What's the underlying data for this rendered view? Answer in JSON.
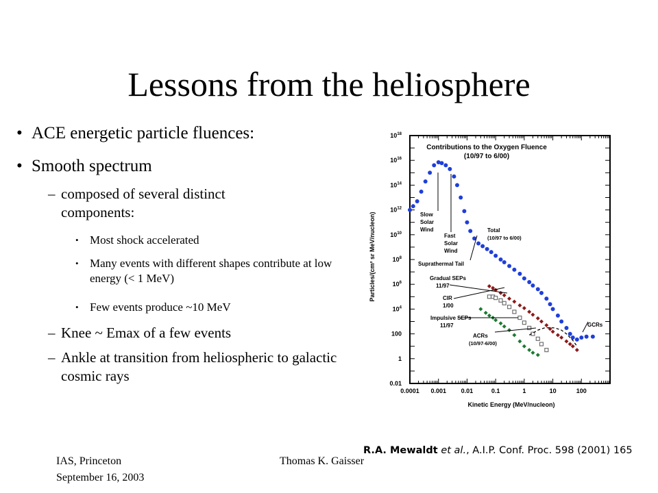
{
  "slide": {
    "title": "Lessons from the heliosphere",
    "bullets": [
      {
        "text": "ACE energetic particle fluences:"
      },
      {
        "text": "Smooth spectrum"
      },
      {
        "text": "composed of several distinct components:"
      },
      {
        "text": "Most shock accelerated"
      },
      {
        "text": "Many events with different shapes contribute at low energy (< 1 MeV)"
      },
      {
        "text": "Few events produce ~10 MeV"
      },
      {
        "text": "Knee ~ Emax of a few events"
      },
      {
        "text": "Ankle at transition from heliospheric to galactic cosmic rays"
      }
    ],
    "footer": {
      "left_line1": "IAS, Princeton",
      "left_line2": "September 16, 2003",
      "center": "Thomas K. Gaisser"
    },
    "citation": {
      "authors": "R.A. Mewaldt",
      "etal": "et al.",
      "rest": ", A.I.P. Conf. Proc. 598 (2001) 165"
    }
  },
  "chart_data": {
    "type": "scatter",
    "title": "Contributions to the Oxygen Fluence",
    "subtitle": "(10/97 to 6/00)",
    "xlabel": "Kinetic Energy (MeV/nucleon)",
    "ylabel": "Particles/(cm² sr MeV/nucleon)",
    "xscale": "log",
    "yscale": "log",
    "xlim": [
      0.0001,
      1000
    ],
    "ylim": [
      0.01,
      1e+18
    ],
    "x_ticks": [
      {
        "v": 0.0001,
        "label": "0.0001"
      },
      {
        "v": 0.001,
        "label": "0.001"
      },
      {
        "v": 0.01,
        "label": "0.01"
      },
      {
        "v": 0.1,
        "label": "0.1"
      },
      {
        "v": 1,
        "label": "1"
      },
      {
        "v": 10,
        "label": "10"
      },
      {
        "v": 100,
        "label": "100"
      }
    ],
    "y_ticks": [
      {
        "v": 0.01,
        "label": "0.01"
      },
      {
        "v": 1,
        "label": "1"
      },
      {
        "v": 100,
        "label": "100"
      },
      {
        "v": 10000.0,
        "label": "10",
        "exp": "4"
      },
      {
        "v": 1000000.0,
        "label": "10",
        "exp": "6"
      },
      {
        "v": 100000000.0,
        "label": "10",
        "exp": "8"
      },
      {
        "v": 10000000000.0,
        "label": "10",
        "exp": "10"
      },
      {
        "v": 1000000000000.0,
        "label": "10",
        "exp": "12"
      },
      {
        "v": 100000000000000.0,
        "label": "10",
        "exp": "14"
      },
      {
        "v": 1e+16,
        "label": "10",
        "exp": "16"
      },
      {
        "v": 1e+18,
        "label": "10",
        "exp": "18"
      }
    ],
    "grid": false,
    "series": [
      {
        "name": "Total",
        "sublabel": "(10/97 to 6/00)",
        "color": "#1f3fd8",
        "marker": "circle",
        "x": [
          0.0001,
          0.00013,
          0.00018,
          0.00025,
          0.00035,
          0.0005,
          0.0007,
          0.001,
          0.0013,
          0.0018,
          0.0025,
          0.0035,
          0.0045,
          0.006,
          0.008,
          0.01,
          0.013,
          0.018,
          0.025,
          0.035,
          0.05,
          0.07,
          0.1,
          0.15,
          0.2,
          0.3,
          0.45,
          0.7,
          1,
          1.5,
          2,
          3,
          4,
          6,
          8,
          10,
          15,
          20,
          30,
          40,
          50,
          70,
          100,
          150,
          250
        ],
        "y": [
          1000000000000.0,
          2000000000000.0,
          5000000000000.0,
          30000000000000.0,
          200000000000000.0,
          1000000000000000.0,
          4000000000000000.0,
          7000000000000000.0,
          6000000000000000.0,
          4000000000000000.0,
          2000000000000000.0,
          500000000000000.0,
          100000000000000.0,
          10000000000000.0,
          800000000000.0,
          100000000000.0,
          20000000000.0,
          5000000000.0,
          2000000000.0,
          1200000000.0,
          700000000.0,
          400000000.0,
          200000000.0,
          100000000.0,
          60000000.0,
          30000000.0,
          15000000.0,
          7000000.0,
          3000000.0,
          1500000.0,
          800000.0,
          400000.0,
          200000.0,
          70000.0,
          25000.0,
          10000.0,
          3000,
          1000,
          300,
          100,
          50,
          35,
          50,
          60,
          60
        ]
      },
      {
        "name": "Gradual SEPs",
        "sublabel": "11/97",
        "color": "#8b1a1a",
        "marker": "diamond",
        "x": [
          0.06,
          0.08,
          0.1,
          0.15,
          0.2,
          0.3,
          0.45,
          0.7,
          1,
          1.5,
          2,
          3,
          4,
          6,
          8,
          10,
          15,
          20,
          30,
          40,
          50,
          70
        ],
        "y": [
          700000.0,
          500000.0,
          350000.0,
          200000.0,
          130000.0,
          70000.0,
          40000.0,
          20000.0,
          12000.0,
          6000,
          3500,
          1800,
          1000,
          500,
          250,
          150,
          80,
          50,
          25,
          15,
          10,
          5
        ]
      },
      {
        "name": "CIR",
        "sublabel": "1/00",
        "color": "#6f6f6f",
        "marker": "square",
        "x": [
          0.06,
          0.08,
          0.1,
          0.15,
          0.2,
          0.3,
          0.45,
          0.7,
          1,
          1.5,
          2,
          3,
          4,
          6
        ],
        "y": [
          100000.0,
          100000.0,
          80000.0,
          50000.0,
          30000.0,
          15000.0,
          6000,
          2000,
          800,
          300,
          100,
          40,
          15,
          5
        ]
      },
      {
        "name": "Impulsive SEPs",
        "sublabel": "11/97",
        "color": "#1e7a32",
        "marker": "diamond",
        "x": [
          0.03,
          0.045,
          0.06,
          0.08,
          0.1,
          0.15,
          0.2,
          0.3,
          0.45,
          0.7,
          1,
          1.5,
          2,
          3
        ],
        "y": [
          10000.0,
          5000,
          3000,
          2000,
          1300,
          700,
          400,
          200,
          80,
          25,
          10,
          5,
          3,
          2
        ]
      },
      {
        "name": "ACRs",
        "sublabel": "(10/97-6/00)",
        "color": "#000000",
        "marker": "dash",
        "x": [
          1.5,
          3,
          5,
          8,
          12,
          20,
          30,
          50,
          70
        ],
        "y": [
          80,
          200,
          300,
          320,
          300,
          200,
          100,
          30,
          10
        ]
      }
    ],
    "annotations": [
      {
        "lines": [
          "Slow",
          "Solar",
          "Wind"
        ]
      },
      {
        "lines": [
          "Fast",
          "Solar",
          "Wind"
        ]
      },
      {
        "lines": [
          "Suprathermal Tail"
        ]
      },
      {
        "lines": [
          "GCRs"
        ]
      }
    ]
  }
}
